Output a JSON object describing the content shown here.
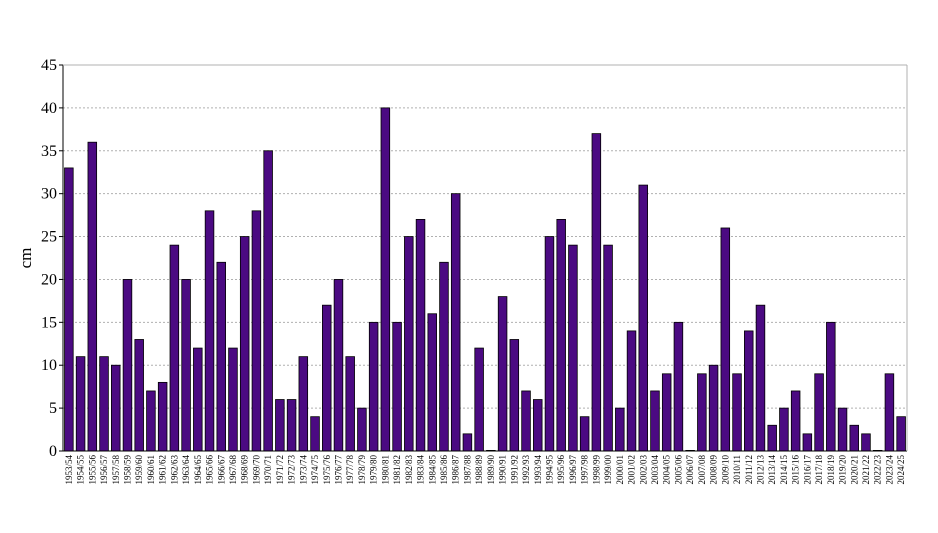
{
  "chart_data": {
    "type": "bar",
    "title": "",
    "xlabel": "",
    "ylabel": "cm",
    "ylim": [
      0,
      45
    ],
    "yticks": [
      0,
      5,
      10,
      15,
      20,
      25,
      30,
      35,
      40,
      45
    ],
    "grid": true,
    "legend": "none",
    "bar_color": "#4b0a82",
    "bar_edge_color": "#000000",
    "grid_color": "#b0b0b0",
    "categories": [
      "1953/54",
      "1954/55",
      "1955/56",
      "1956/57",
      "1957/58",
      "1958/59",
      "1959/60",
      "1960/61",
      "1961/62",
      "1962/63",
      "1963/64",
      "1964/65",
      "1965/66",
      "1966/67",
      "1967/68",
      "1968/69",
      "1969/70",
      "1970/71",
      "1971/72",
      "1972/73",
      "1973/74",
      "1974/75",
      "1975/76",
      "1976/77",
      "1977/78",
      "1978/79",
      "1979/80",
      "1980/81",
      "1981/82",
      "1982/83",
      "1983/84",
      "1984/85",
      "1985/86",
      "1986/87",
      "1987/88",
      "1988/89",
      "1989/90",
      "1990/91",
      "1991/92",
      "1992/93",
      "1993/94",
      "1994/95",
      "1995/96",
      "1996/97",
      "1997/98",
      "1998/99",
      "1999/00",
      "2000/01",
      "2001/02",
      "2002/03",
      "2003/04",
      "2004/05",
      "2005/06",
      "2006/07",
      "2007/08",
      "2008/09",
      "2009/10",
      "2010/11",
      "2011/12",
      "2012/13",
      "2013/14",
      "2014/15",
      "2015/16",
      "2016/17",
      "2017/18",
      "2018/19",
      "2019/20",
      "2020/21",
      "2021/22",
      "2022/23",
      "2023/24",
      "2024/25"
    ],
    "values": [
      33,
      11,
      36,
      11,
      10,
      20,
      13,
      7,
      8,
      24,
      20,
      12,
      28,
      22,
      12,
      25,
      28,
      35,
      6,
      6,
      11,
      4,
      17,
      20,
      11,
      5,
      15,
      40,
      15,
      25,
      27,
      16,
      22,
      30,
      2,
      12,
      0,
      18,
      13,
      7,
      6,
      25,
      27,
      24,
      4,
      37,
      24,
      5,
      14,
      31,
      7,
      9,
      15,
      0,
      9,
      10,
      26,
      9,
      14,
      17,
      3,
      5,
      7,
      2,
      9,
      15,
      5,
      3,
      2,
      0,
      9,
      4
    ]
  }
}
